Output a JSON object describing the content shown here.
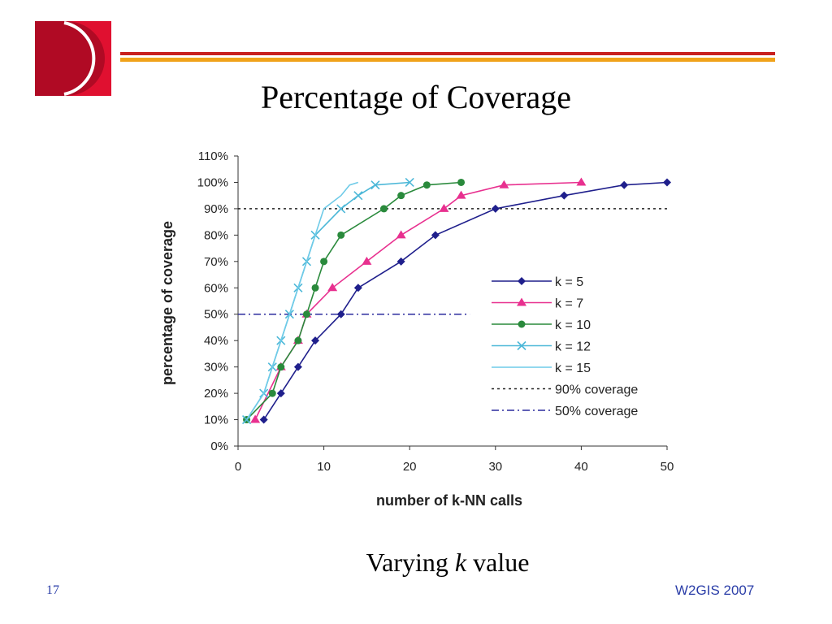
{
  "slide": {
    "title": "Percentage of Coverage",
    "caption_prefix": "Varying ",
    "caption_italic": "k",
    "caption_suffix": " value",
    "number": "17",
    "footer": "W2GIS 2007",
    "colors": {
      "logo": "#e01030",
      "rule_red": "#c8201e",
      "rule_orange": "#f0a21a",
      "footer_text": "#2b3ea8"
    }
  },
  "chart_data": {
    "type": "line",
    "title": "",
    "xlabel": "number of k-NN calls",
    "ylabel": "percentage of coverage",
    "xlim": [
      0,
      50
    ],
    "ylim": [
      0,
      110
    ],
    "x_ticks": [
      "0",
      "10",
      "20",
      "30",
      "40",
      "50"
    ],
    "y_ticks": [
      "0%",
      "10%",
      "20%",
      "30%",
      "40%",
      "50%",
      "60%",
      "70%",
      "80%",
      "90%",
      "100%",
      "110%"
    ],
    "grid": false,
    "legend_position": "right",
    "series": [
      {
        "name": "k = 5",
        "color": "#1f1f8c",
        "marker": "diamond",
        "x": [
          3,
          5,
          7,
          9,
          12,
          14,
          19,
          23,
          30,
          38,
          45,
          50
        ],
        "y": [
          10,
          20,
          30,
          40,
          50,
          60,
          70,
          80,
          90,
          95,
          99,
          100
        ]
      },
      {
        "name": "k = 7",
        "color": "#e8308f",
        "marker": "triangle",
        "x": [
          2,
          5,
          7,
          8,
          11,
          15,
          19,
          24,
          26,
          31,
          40
        ],
        "y": [
          10,
          30,
          40,
          50,
          60,
          70,
          80,
          90,
          95,
          99,
          100
        ]
      },
      {
        "name": "k = 10",
        "color": "#2a8a3c",
        "marker": "circle",
        "x": [
          1,
          4,
          5,
          7,
          8,
          9,
          10,
          12,
          17,
          19,
          22,
          26
        ],
        "y": [
          10,
          20,
          30,
          40,
          50,
          60,
          70,
          80,
          90,
          95,
          99,
          100
        ]
      },
      {
        "name": "k = 12",
        "color": "#4db8d8",
        "marker": "x",
        "x": [
          1,
          3,
          4,
          5,
          6,
          7,
          8,
          9,
          12,
          14,
          16,
          20
        ],
        "y": [
          10,
          20,
          30,
          40,
          50,
          60,
          70,
          80,
          90,
          95,
          99,
          100
        ]
      },
      {
        "name": "k = 15",
        "color": "#6fcbe8",
        "marker": "none",
        "x": [
          1,
          2,
          3,
          4,
          5,
          6,
          7,
          8,
          9,
          10,
          12,
          13,
          14
        ],
        "y": [
          10,
          15,
          20,
          30,
          40,
          50,
          60,
          70,
          80,
          90,
          95,
          99,
          100
        ]
      },
      {
        "name": "90% coverage",
        "color": "#222222",
        "style": "dotted",
        "x": [
          0,
          50
        ],
        "y": [
          90,
          90
        ]
      },
      {
        "name": "50% coverage",
        "color": "#2b2b9e",
        "style": "dashdot",
        "x": [
          0,
          27
        ],
        "y": [
          50,
          50
        ]
      }
    ]
  }
}
